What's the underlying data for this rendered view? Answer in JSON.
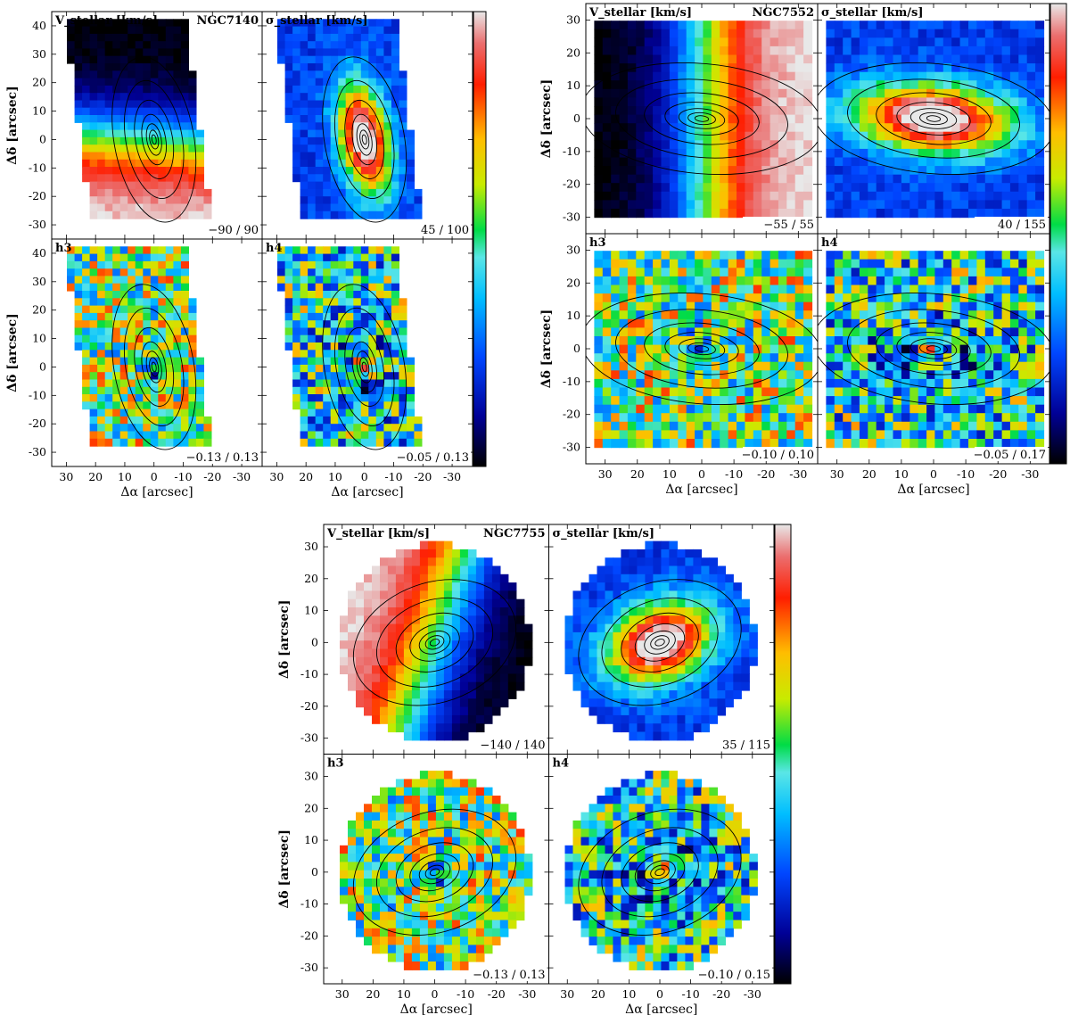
{
  "chart_data": [
    {
      "type": "heatmap",
      "galaxy": "NGC7140",
      "colormap": "sauron",
      "xlabel": "Δα [arcsec]",
      "ylabel": "Δδ [arcsec]",
      "xlim": [
        35,
        -37
      ],
      "ylim": [
        -35,
        45
      ],
      "xticks": [
        30,
        20,
        10,
        0,
        -10,
        -20,
        -30
      ],
      "yticks": [
        -30,
        -20,
        -10,
        0,
        10,
        20,
        30,
        40
      ],
      "field": {
        "shape": "tilted-slab",
        "pa_deg": 10,
        "major_r": 28,
        "minor_r": 12
      },
      "panels": [
        {
          "label": "V",
          "title": "V_stellar [km/s]",
          "range_text": "−90 / 90",
          "vmin": -90,
          "vmax": 90,
          "pattern": "velocity",
          "angle_deg": -85
        },
        {
          "label": "sigma",
          "title": "σ_stellar [km/s]",
          "range_text": "45 / 100",
          "vmin": 45,
          "vmax": 100,
          "pattern": "dispersion"
        },
        {
          "label": "h3",
          "title": "h3",
          "range_text": "−0.13 / 0.13",
          "vmin": -0.13,
          "vmax": 0.13,
          "pattern": "h3"
        },
        {
          "label": "h4",
          "title": "h4",
          "range_text": "−0.05 / 0.13",
          "vmin": -0.05,
          "vmax": 0.13,
          "pattern": "h4"
        }
      ]
    },
    {
      "type": "heatmap",
      "galaxy": "NGC7552",
      "colormap": "sauron",
      "xlabel": "Δα [arcsec]",
      "ylabel": "Δδ [arcsec]",
      "xlim": [
        36,
        -36
      ],
      "ylim": [
        -35,
        35
      ],
      "xticks": [
        30,
        20,
        10,
        0,
        -10,
        -20,
        -30
      ],
      "yticks": [
        -30,
        -20,
        -10,
        0,
        10,
        20,
        30
      ],
      "field": {
        "shape": "rectangle",
        "pa_deg": 85,
        "major_r": 35,
        "minor_r": 15
      },
      "panels": [
        {
          "label": "V",
          "title": "V_stellar [km/s]",
          "range_text": "−55 / 55",
          "vmin": -55,
          "vmax": 55,
          "pattern": "velocity",
          "angle_deg": 180
        },
        {
          "label": "sigma",
          "title": "σ_stellar [km/s]",
          "range_text": "40 / 155",
          "vmin": 40,
          "vmax": 155,
          "pattern": "dispersion"
        },
        {
          "label": "h3",
          "title": "h3",
          "range_text": "−0.10 / 0.10",
          "vmin": -0.1,
          "vmax": 0.1,
          "pattern": "h3"
        },
        {
          "label": "h4",
          "title": "h4",
          "range_text": "−0.05 / 0.17",
          "vmin": -0.05,
          "vmax": 0.17,
          "pattern": "h4"
        }
      ]
    },
    {
      "type": "heatmap",
      "galaxy": "NGC7755",
      "colormap": "sauron",
      "xlabel": "Δα [arcsec]",
      "ylabel": "Δδ [arcsec]",
      "xlim": [
        36,
        -37
      ],
      "ylim": [
        -35,
        37
      ],
      "xticks": [
        30,
        20,
        10,
        0,
        -10,
        -20,
        -30
      ],
      "yticks": [
        -30,
        -20,
        -10,
        0,
        10,
        20,
        30
      ],
      "field": {
        "shape": "disk",
        "pa_deg": 110,
        "major_r": 25,
        "minor_r": 17
      },
      "panels": [
        {
          "label": "V",
          "title": "V_stellar [km/s]",
          "range_text": "−140 / 140",
          "vmin": -140,
          "vmax": 140,
          "pattern": "velocity",
          "angle_deg": 20
        },
        {
          "label": "sigma",
          "title": "σ_stellar [km/s]",
          "range_text": "35 / 115",
          "vmin": 35,
          "vmax": 115,
          "pattern": "dispersion"
        },
        {
          "label": "h3",
          "title": "h3",
          "range_text": "−0.13 / 0.13",
          "vmin": -0.13,
          "vmax": 0.13,
          "pattern": "h3"
        },
        {
          "label": "h4",
          "title": "h4",
          "range_text": "−0.10 / 0.15",
          "vmin": -0.1,
          "vmax": 0.15,
          "pattern": "h4"
        }
      ]
    }
  ]
}
